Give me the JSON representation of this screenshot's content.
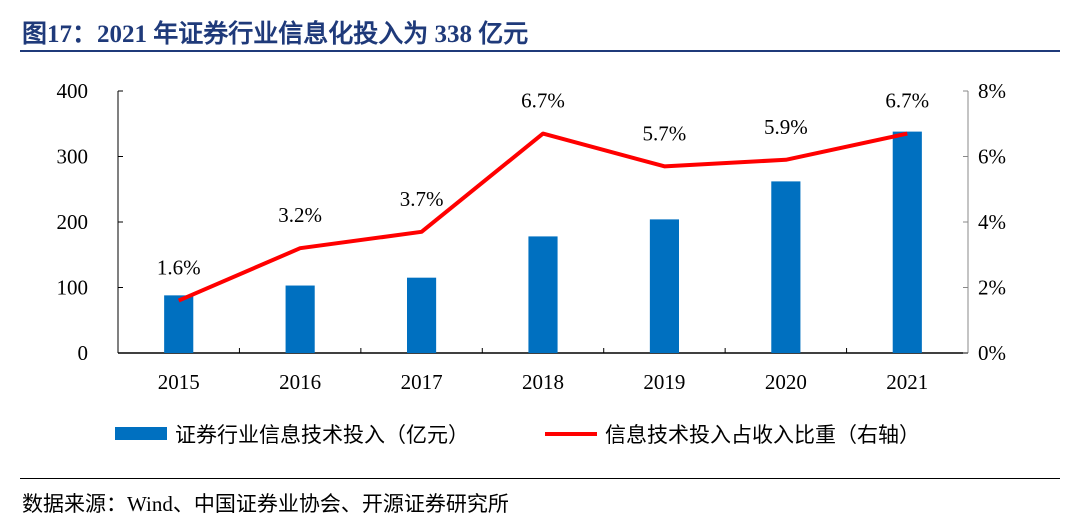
{
  "title": "图17：2021 年证券行业信息化投入为 338 亿元",
  "source": "数据来源：Wind、中国证券业协会、开源证券研究所",
  "chart_data": {
    "type": "bar+line",
    "categories": [
      "2015",
      "2016",
      "2017",
      "2018",
      "2019",
      "2020",
      "2021"
    ],
    "series": [
      {
        "name": "证券行业信息技术投入（亿元）",
        "type": "bar",
        "axis": "left",
        "color": "#0070C0",
        "values": [
          88,
          103,
          115,
          178,
          204,
          262,
          338
        ]
      },
      {
        "name": "信息技术投入占收入比重（右轴）",
        "type": "line",
        "axis": "right",
        "color": "#FF0000",
        "values": [
          1.6,
          3.2,
          3.7,
          6.7,
          5.7,
          5.9,
          6.7
        ],
        "labels": [
          "1.6%",
          "3.2%",
          "3.7%",
          "6.7%",
          "5.7%",
          "5.9%",
          "6.7%"
        ]
      }
    ],
    "y_left": {
      "lim": [
        0,
        400
      ],
      "ticks": [
        "0",
        "100",
        "200",
        "300",
        "400"
      ]
    },
    "y_right": {
      "lim": [
        0,
        8
      ],
      "ticks": [
        "0%",
        "2%",
        "4%",
        "6%",
        "8%"
      ]
    },
    "grid": false,
    "legend_placement": "bottom"
  }
}
